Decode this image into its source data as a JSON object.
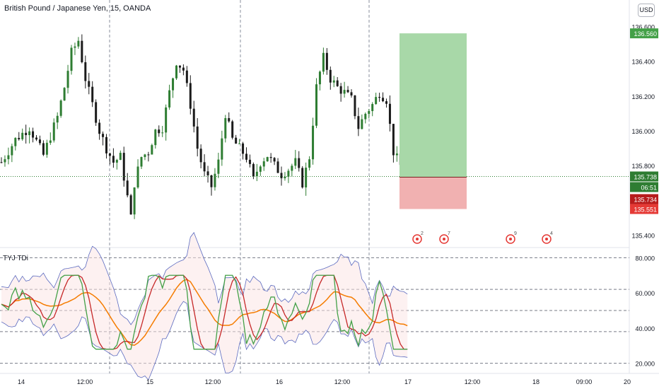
{
  "header": {
    "symbol_title": "British Pound / Japanese Yen, 15, OANDA",
    "currency_label": "USD"
  },
  "indicator": {
    "title": "TYJ TDi"
  },
  "colors": {
    "bull": "#2e7d32",
    "bear": "#1b1b1b",
    "profit_zone": "#a8d8a8",
    "loss_zone": "#f1b1b1",
    "rsi_line": "#43a047",
    "signal_line": "#c62828",
    "base_line": "#f57c00",
    "band": "#5c6bc0"
  },
  "chart_data": [
    {
      "type": "candlestick",
      "title": "British Pound / Japanese Yen, 15, OANDA",
      "y_range": [
        135.35,
        136.65
      ],
      "y_ticks": [
        "136.600",
        "136.400",
        "136.200",
        "136.000",
        "135.800",
        "135.400"
      ],
      "x_ticks": [
        "14",
        "12:00",
        "15",
        "12:00",
        "16",
        "12:00",
        "17",
        "12:00",
        "18",
        "09:00",
        "20"
      ],
      "close_path_keypoints": [
        [
          0,
          135.82
        ],
        [
          4,
          135.95
        ],
        [
          8,
          136.02
        ],
        [
          12,
          135.86
        ],
        [
          16,
          136.08
        ],
        [
          18,
          136.25
        ],
        [
          20,
          136.45
        ],
        [
          22,
          136.52
        ],
        [
          24,
          136.3
        ],
        [
          26,
          136.15
        ],
        [
          28,
          136.0
        ],
        [
          30,
          135.9
        ],
        [
          32,
          135.82
        ],
        [
          34,
          135.85
        ],
        [
          36,
          135.62
        ],
        [
          37,
          135.5
        ],
        [
          38,
          135.7
        ],
        [
          40,
          135.85
        ],
        [
          42,
          135.88
        ],
        [
          44,
          136.0
        ],
        [
          46,
          136.02
        ],
        [
          48,
          136.22
        ],
        [
          50,
          136.4
        ],
        [
          52,
          136.35
        ],
        [
          54,
          136.15
        ],
        [
          56,
          135.9
        ],
        [
          58,
          135.75
        ],
        [
          60,
          135.68
        ],
        [
          62,
          135.82
        ],
        [
          64,
          136.1
        ],
        [
          66,
          135.95
        ],
        [
          68,
          135.9
        ],
        [
          70,
          135.85
        ],
        [
          72,
          135.72
        ],
        [
          74,
          135.82
        ],
        [
          76,
          135.86
        ],
        [
          78,
          135.8
        ],
        [
          80,
          135.75
        ],
        [
          82,
          135.78
        ],
        [
          84,
          135.82
        ],
        [
          86,
          135.7
        ],
        [
          88,
          135.85
        ],
        [
          90,
          136.25
        ],
        [
          92,
          136.42
        ],
        [
          94,
          136.3
        ],
        [
          96,
          136.25
        ],
        [
          98,
          136.22
        ],
        [
          100,
          136.18
        ],
        [
          102,
          136.02
        ],
        [
          104,
          136.1
        ],
        [
          106,
          136.15
        ],
        [
          108,
          136.22
        ],
        [
          110,
          136.18
        ],
        [
          112,
          135.88
        ],
        [
          114,
          135.8
        ],
        [
          116,
          135.73
        ]
      ],
      "annotations": {
        "current_price_label": "135.738",
        "countdown_label": "06:51",
        "take_profit_label": "136.560",
        "entry_label": "135.734",
        "stop_loss_label": "135.551",
        "take_profit": 136.56,
        "entry": 135.734,
        "stop_loss": 135.551
      },
      "event_markers": [
        {
          "label": "2"
        },
        {
          "label": "7"
        },
        {
          "label": "9"
        },
        {
          "label": "4"
        }
      ]
    },
    {
      "type": "line",
      "title": "TYJ TDi",
      "y_range": [
        15,
        85
      ],
      "y_ticks": [
        "80.000",
        "60.000",
        "40.000",
        "20.000"
      ],
      "levels": [
        80,
        62,
        50,
        38,
        20
      ]
    }
  ]
}
